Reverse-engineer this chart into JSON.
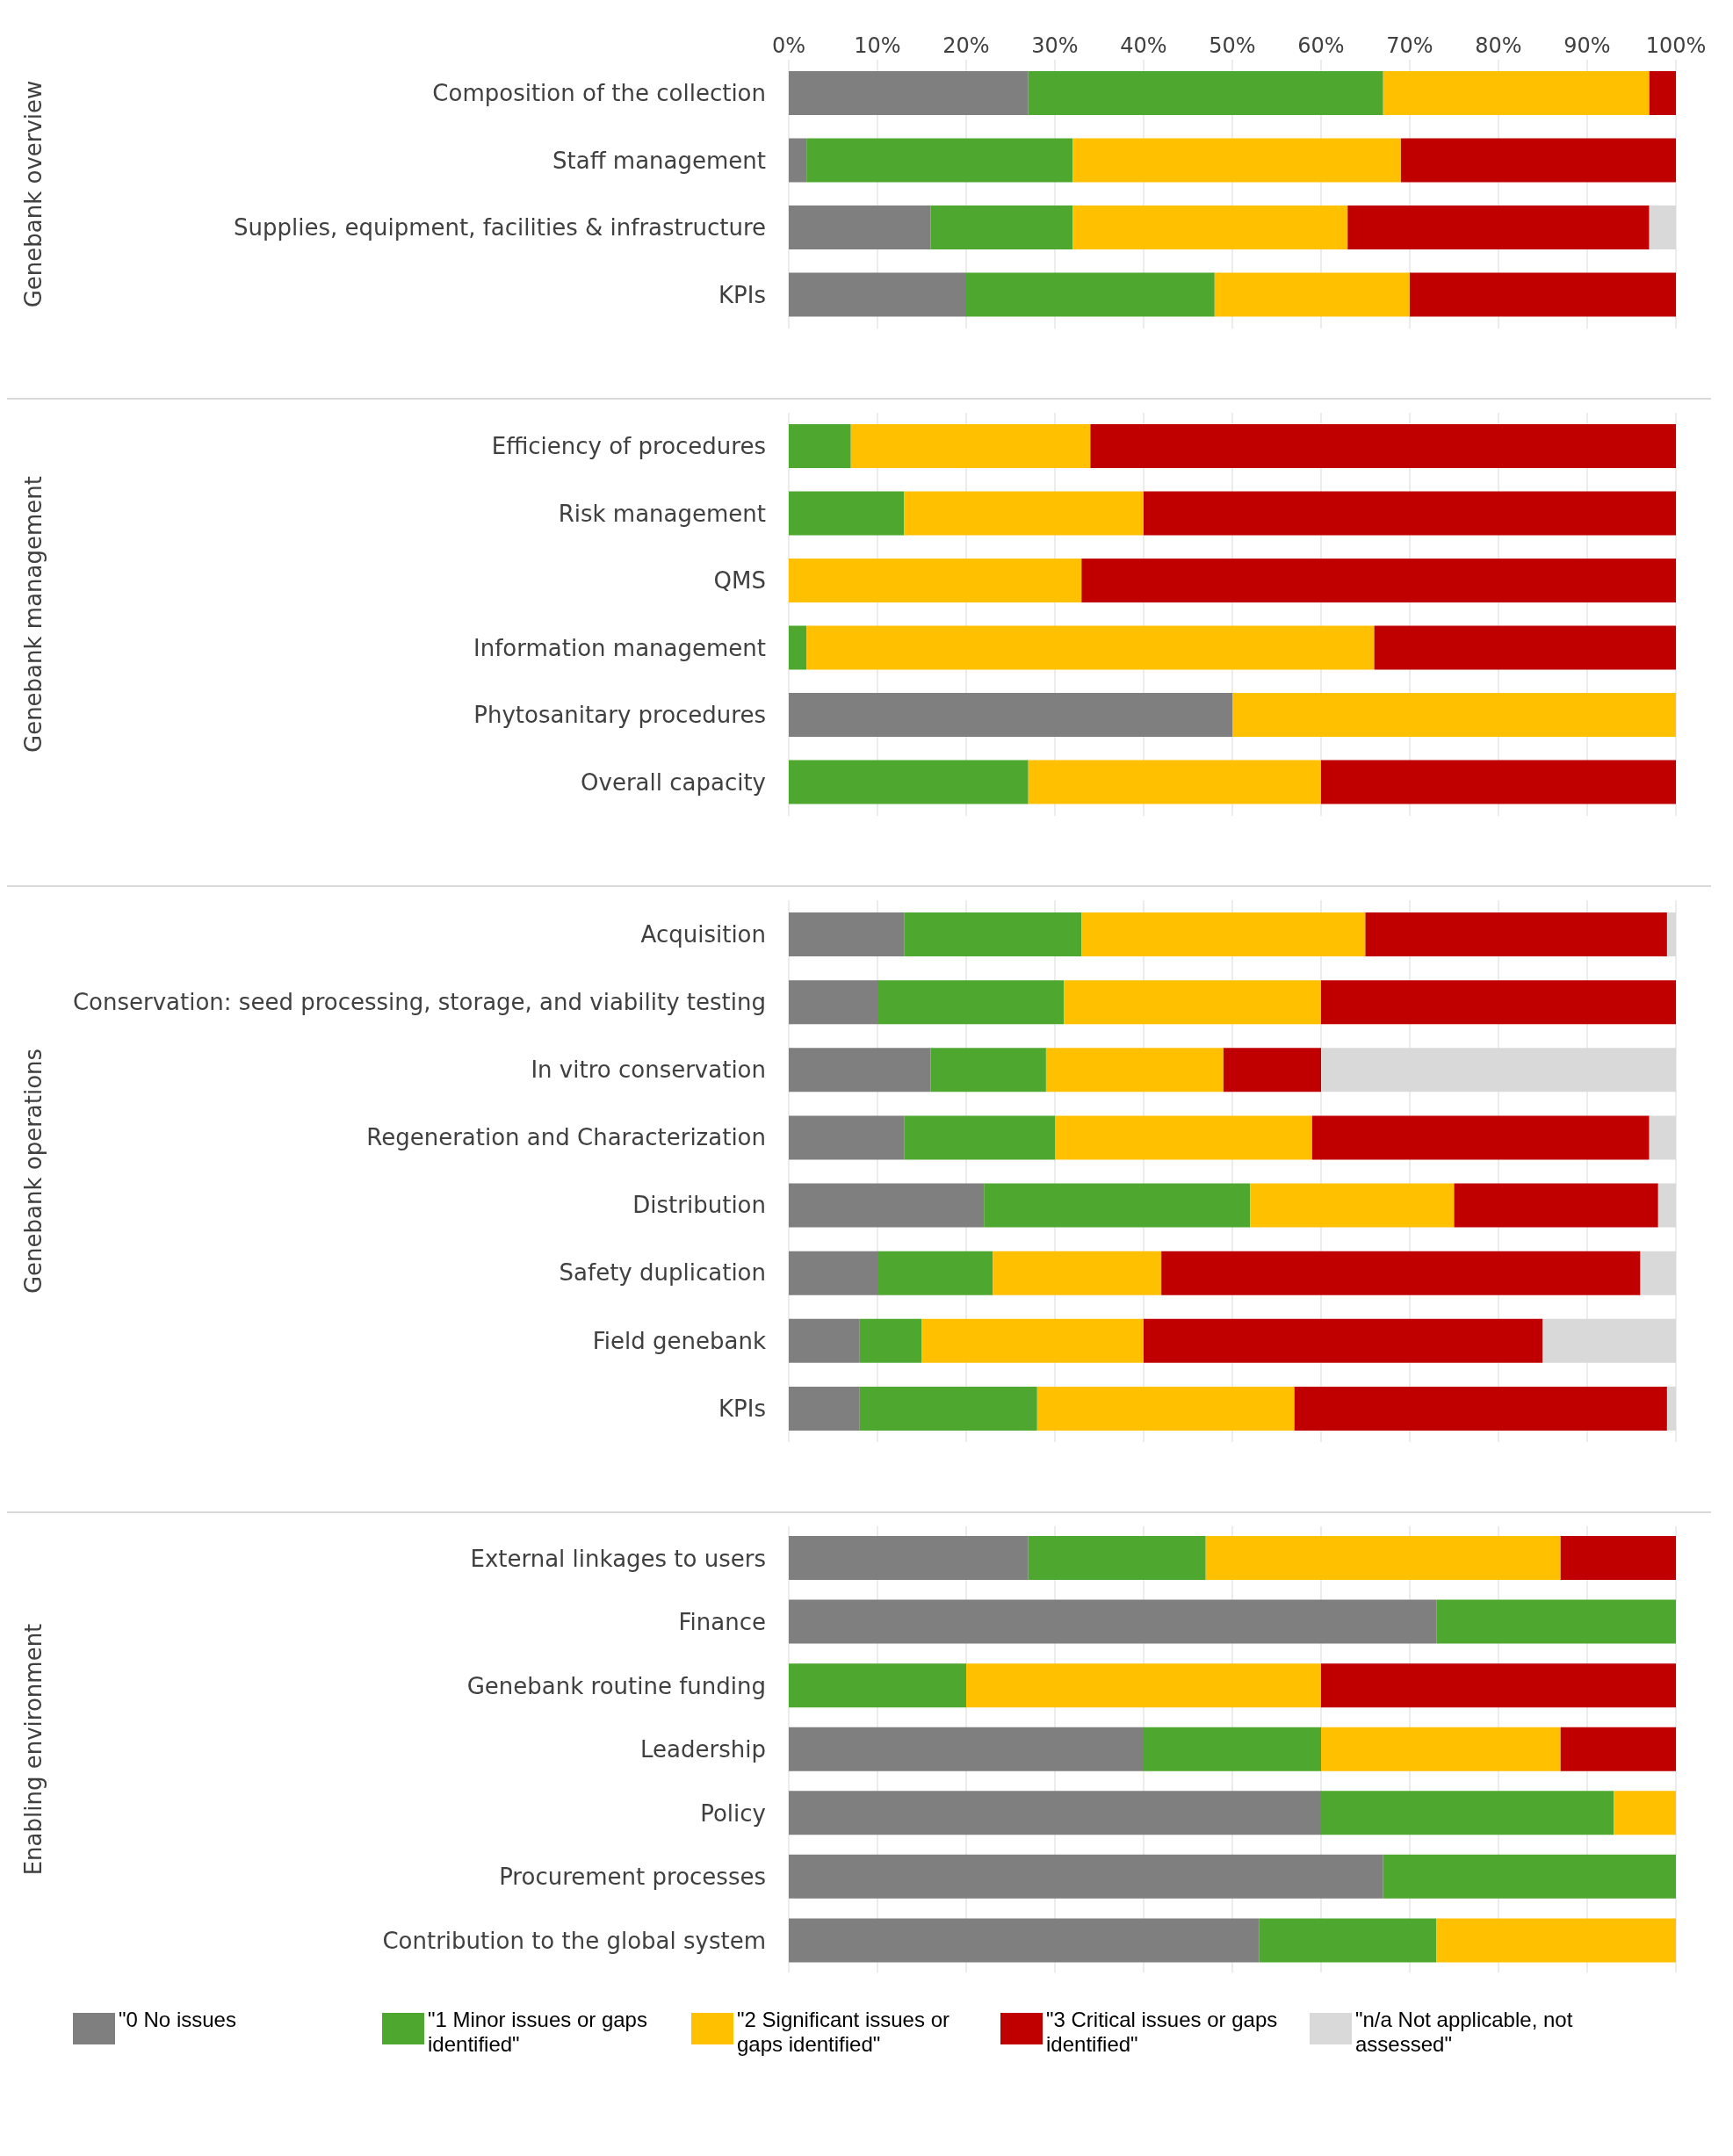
{
  "chart_data": [
    {
      "type": "bar",
      "orientation": "horizontal",
      "stacked": true,
      "ylabel": "Genebank overview",
      "xlim": [
        0,
        100
      ],
      "xticks": [
        {
          "value": 0,
          "label": "0%"
        },
        {
          "value": 10,
          "label": "10%"
        },
        {
          "value": 20,
          "label": "20%"
        },
        {
          "value": 30,
          "label": "30%"
        },
        {
          "value": 40,
          "label": "40%"
        },
        {
          "value": 50,
          "label": "50%"
        },
        {
          "value": 60,
          "label": "60%"
        },
        {
          "value": 70,
          "label": "70%"
        },
        {
          "value": 80,
          "label": "80%"
        },
        {
          "value": 90,
          "label": "90%"
        },
        {
          "value": 100,
          "label": "100%"
        }
      ],
      "grid": "x",
      "categories": [
        "Composition of the collection",
        "Staff management",
        "Supplies, equipment, facilities & infrastructure",
        "KPIs"
      ],
      "series": [
        {
          "color": "#7f7f7f",
          "values": [
            27,
            2,
            16,
            20
          ]
        },
        {
          "color": "#4ea72e",
          "values": [
            40,
            30,
            16,
            28
          ]
        },
        {
          "color": "#ffc000",
          "values": [
            30,
            37,
            31,
            22
          ]
        },
        {
          "color": "#c00000",
          "values": [
            3,
            31,
            34,
            30
          ]
        },
        {
          "color": "#d9d9d9",
          "values": [
            0,
            0,
            3,
            0
          ]
        }
      ]
    },
    {
      "type": "bar",
      "orientation": "horizontal",
      "stacked": true,
      "ylabel": "Genebank management",
      "xlim": [
        0,
        100
      ],
      "xticks": [
        0,
        10,
        20,
        30,
        40,
        50,
        60,
        70,
        80,
        90,
        100
      ],
      "grid": "x",
      "tick_labels": "y",
      "categories": [
        "Efficiency of procedures",
        "Risk management",
        "QMS",
        "Information management",
        "Phytosanitary procedures",
        "Overall capacity"
      ],
      "series": [
        {
          "color": "#7f7f7f",
          "values": [
            0,
            0,
            0,
            0,
            50,
            0
          ]
        },
        {
          "color": "#4ea72e",
          "values": [
            7,
            13,
            0,
            2,
            0,
            27
          ]
        },
        {
          "color": "#ffc000",
          "values": [
            27,
            27,
            33,
            64,
            50,
            33
          ]
        },
        {
          "color": "#c00000",
          "values": [
            66,
            60,
            67,
            34,
            0,
            40
          ]
        },
        {
          "color": "#d9d9d9",
          "values": [
            0,
            0,
            0,
            0,
            0,
            0
          ]
        }
      ]
    },
    {
      "type": "bar",
      "orientation": "horizontal",
      "stacked": true,
      "ylabel": "Genebank operations",
      "xlim": [
        0,
        100
      ],
      "xticks": [
        0,
        10,
        20,
        30,
        40,
        50,
        60,
        70,
        80,
        90,
        100
      ],
      "grid": "x",
      "tick_labels": "y",
      "categories": [
        "Acquisition",
        "Conservation: seed processing, storage, and viability testing",
        "In vitro conservation",
        "Regeneration and Characterization",
        "Distribution",
        "Safety duplication",
        "Field genebank",
        "KPIs"
      ],
      "series": [
        {
          "color": "#7f7f7f",
          "values": [
            13,
            10,
            16,
            13,
            22,
            10,
            8,
            8
          ]
        },
        {
          "color": "#4ea72e",
          "values": [
            20,
            21,
            13,
            17,
            30,
            13,
            7,
            20
          ]
        },
        {
          "color": "#ffc000",
          "values": [
            32,
            29,
            20,
            29,
            23,
            19,
            25,
            29
          ]
        },
        {
          "color": "#c00000",
          "values": [
            34,
            40,
            11,
            38,
            23,
            54,
            45,
            42
          ]
        },
        {
          "color": "#d9d9d9",
          "values": [
            1,
            0,
            40,
            3,
            2,
            4,
            15,
            1
          ]
        }
      ]
    },
    {
      "type": "bar",
      "orientation": "horizontal",
      "stacked": true,
      "ylabel": "Enabling environment",
      "xlim": [
        0,
        100
      ],
      "xticks": [
        0,
        10,
        20,
        30,
        40,
        50,
        60,
        70,
        80,
        90,
        100
      ],
      "grid": "x",
      "tick_labels": "y",
      "legend": "bottom",
      "categories": [
        "External linkages to users",
        "Finance",
        "Genebank routine funding",
        "Leadership",
        "Policy",
        "Procurement processes",
        "Contribution to the global system"
      ],
      "series": [
        {
          "name": "\"0 No issues",
          "color": "#7f7f7f",
          "values": [
            27,
            73,
            0,
            40,
            60,
            67,
            53
          ]
        },
        {
          "name": "\"1 Minor issues or gaps identified\"",
          "color": "#4ea72e",
          "values": [
            20,
            27,
            20,
            20,
            33,
            33,
            20
          ]
        },
        {
          "name": "\"2 Significant issues or gaps identified\"",
          "color": "#ffc000",
          "values": [
            40,
            0,
            40,
            27,
            7,
            0,
            27
          ]
        },
        {
          "name": "\"3 Critical issues or gaps identified\"",
          "color": "#c00000",
          "values": [
            13,
            0,
            40,
            13,
            0,
            0,
            0
          ]
        },
        {
          "name": "\"n/a Not applicable, not assessed\"",
          "color": "#d9d9d9",
          "values": [
            0,
            0,
            0,
            0,
            0,
            0,
            0
          ]
        }
      ]
    }
  ]
}
